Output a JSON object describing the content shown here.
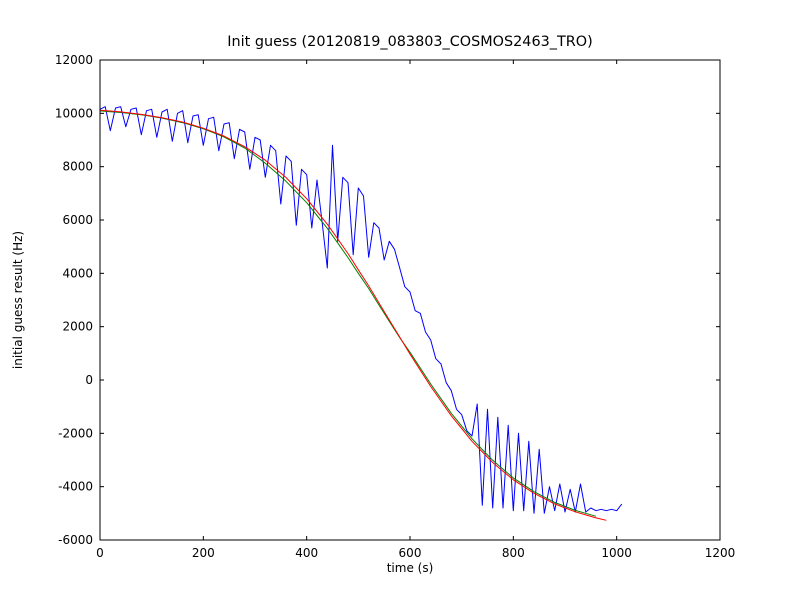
{
  "chart_data": {
    "type": "line",
    "title": "Init guess (20120819_083803_COSMOS2463_TRO)",
    "xlabel": "time (s)",
    "ylabel": "initial guess result (Hz)",
    "xlim": [
      0,
      1200
    ],
    "ylim": [
      -6000,
      12000
    ],
    "xticks": [
      0,
      200,
      400,
      600,
      800,
      1000,
      1200
    ],
    "yticks": [
      -6000,
      -4000,
      -2000,
      0,
      2000,
      4000,
      6000,
      8000,
      10000,
      12000
    ],
    "grid": false,
    "legend": "none",
    "series": [
      {
        "name": "series-blue-noisy-data",
        "color": "#0000ff",
        "x": [
          0,
          10,
          20,
          30,
          40,
          50,
          60,
          70,
          80,
          90,
          100,
          110,
          120,
          130,
          140,
          150,
          160,
          170,
          180,
          190,
          200,
          210,
          220,
          230,
          240,
          250,
          260,
          270,
          280,
          290,
          300,
          310,
          320,
          330,
          340,
          350,
          360,
          370,
          380,
          390,
          400,
          410,
          420,
          430,
          440,
          450,
          460,
          470,
          480,
          490,
          500,
          510,
          520,
          530,
          540,
          550,
          560,
          570,
          580,
          590,
          600,
          610,
          620,
          630,
          640,
          650,
          660,
          670,
          680,
          690,
          700,
          710,
          720,
          730,
          740,
          750,
          760,
          770,
          780,
          790,
          800,
          810,
          820,
          830,
          840,
          850,
          860,
          870,
          880,
          890,
          900,
          910,
          920,
          930,
          940,
          950,
          960,
          970,
          980,
          990,
          1000,
          1010
        ],
        "y": [
          10150,
          10250,
          9350,
          10200,
          10250,
          9500,
          10150,
          10200,
          9200,
          10100,
          10150,
          9100,
          10050,
          10150,
          8950,
          10000,
          10100,
          8900,
          9900,
          9950,
          8800,
          9800,
          9850,
          8600,
          9600,
          9650,
          8300,
          9400,
          9300,
          7900,
          9100,
          9000,
          7600,
          8800,
          8600,
          6600,
          8400,
          8200,
          5800,
          7900,
          7700,
          5700,
          7500,
          5900,
          4200,
          8800,
          5200,
          7600,
          7400,
          4700,
          7200,
          6900,
          4600,
          5900,
          5700,
          4500,
          5200,
          4900,
          4200,
          3500,
          3300,
          2600,
          2500,
          1800,
          1500,
          800,
          600,
          -100,
          -400,
          -1100,
          -1300,
          -1900,
          -2100,
          -900,
          -4700,
          -1100,
          -4800,
          -1400,
          -4800,
          -1700,
          -4900,
          -2000,
          -4900,
          -2300,
          -5000,
          -2600,
          -5000,
          -4000,
          -4900,
          -3900,
          -4950,
          -4100,
          -4950,
          -3900,
          -4950,
          -4800,
          -4900,
          -4850,
          -4900,
          -4850,
          -4900,
          -4650
        ]
      },
      {
        "name": "series-green-smoothed",
        "color": "#008000",
        "x": [
          0,
          20,
          40,
          60,
          80,
          100,
          120,
          140,
          160,
          180,
          200,
          220,
          240,
          260,
          280,
          300,
          320,
          340,
          360,
          380,
          400,
          420,
          440,
          460,
          480,
          500,
          520,
          540,
          560,
          580,
          600,
          620,
          640,
          660,
          680,
          700,
          720,
          740,
          760,
          780,
          800,
          820,
          840,
          860,
          880,
          900,
          920,
          940,
          960
        ],
        "y": [
          10090,
          10060,
          10030,
          9990,
          9945,
          9885,
          9820,
          9735,
          9650,
          9535,
          9420,
          9270,
          9115,
          8910,
          8700,
          8420,
          8130,
          7790,
          7450,
          7050,
          6650,
          6170,
          5690,
          5140,
          4590,
          4000,
          3430,
          2810,
          2200,
          1590,
          1040,
          450,
          -150,
          -700,
          -1250,
          -1730,
          -2200,
          -2610,
          -3010,
          -3340,
          -3670,
          -3930,
          -4190,
          -4390,
          -4590,
          -4740,
          -4890,
          -5000,
          -5110
        ]
      },
      {
        "name": "series-red-fit",
        "color": "#ff0000",
        "x": [
          0,
          20,
          40,
          60,
          80,
          100,
          120,
          140,
          160,
          180,
          200,
          220,
          240,
          260,
          280,
          300,
          320,
          340,
          360,
          380,
          400,
          420,
          440,
          460,
          480,
          500,
          520,
          540,
          560,
          580,
          600,
          620,
          640,
          660,
          680,
          700,
          720,
          740,
          760,
          780,
          800,
          820,
          840,
          860,
          880,
          900,
          920,
          940,
          960,
          980
        ],
        "y": [
          10119,
          10087,
          10053,
          10007,
          9961,
          9899,
          9837,
          9754,
          9670,
          9557,
          9444,
          9295,
          9145,
          8948,
          8750,
          8496,
          8242,
          7918,
          7595,
          7196,
          6797,
          6319,
          5842,
          5291,
          4741,
          4134,
          3527,
          2889,
          2250,
          1611,
          973,
          366,
          -241,
          -791,
          -1342,
          -1820,
          -2297,
          -2696,
          -3095,
          -3419,
          -3742,
          -3996,
          -4250,
          -4448,
          -4645,
          -4795,
          -4944,
          -5057,
          -5170,
          -5260
        ]
      }
    ]
  }
}
